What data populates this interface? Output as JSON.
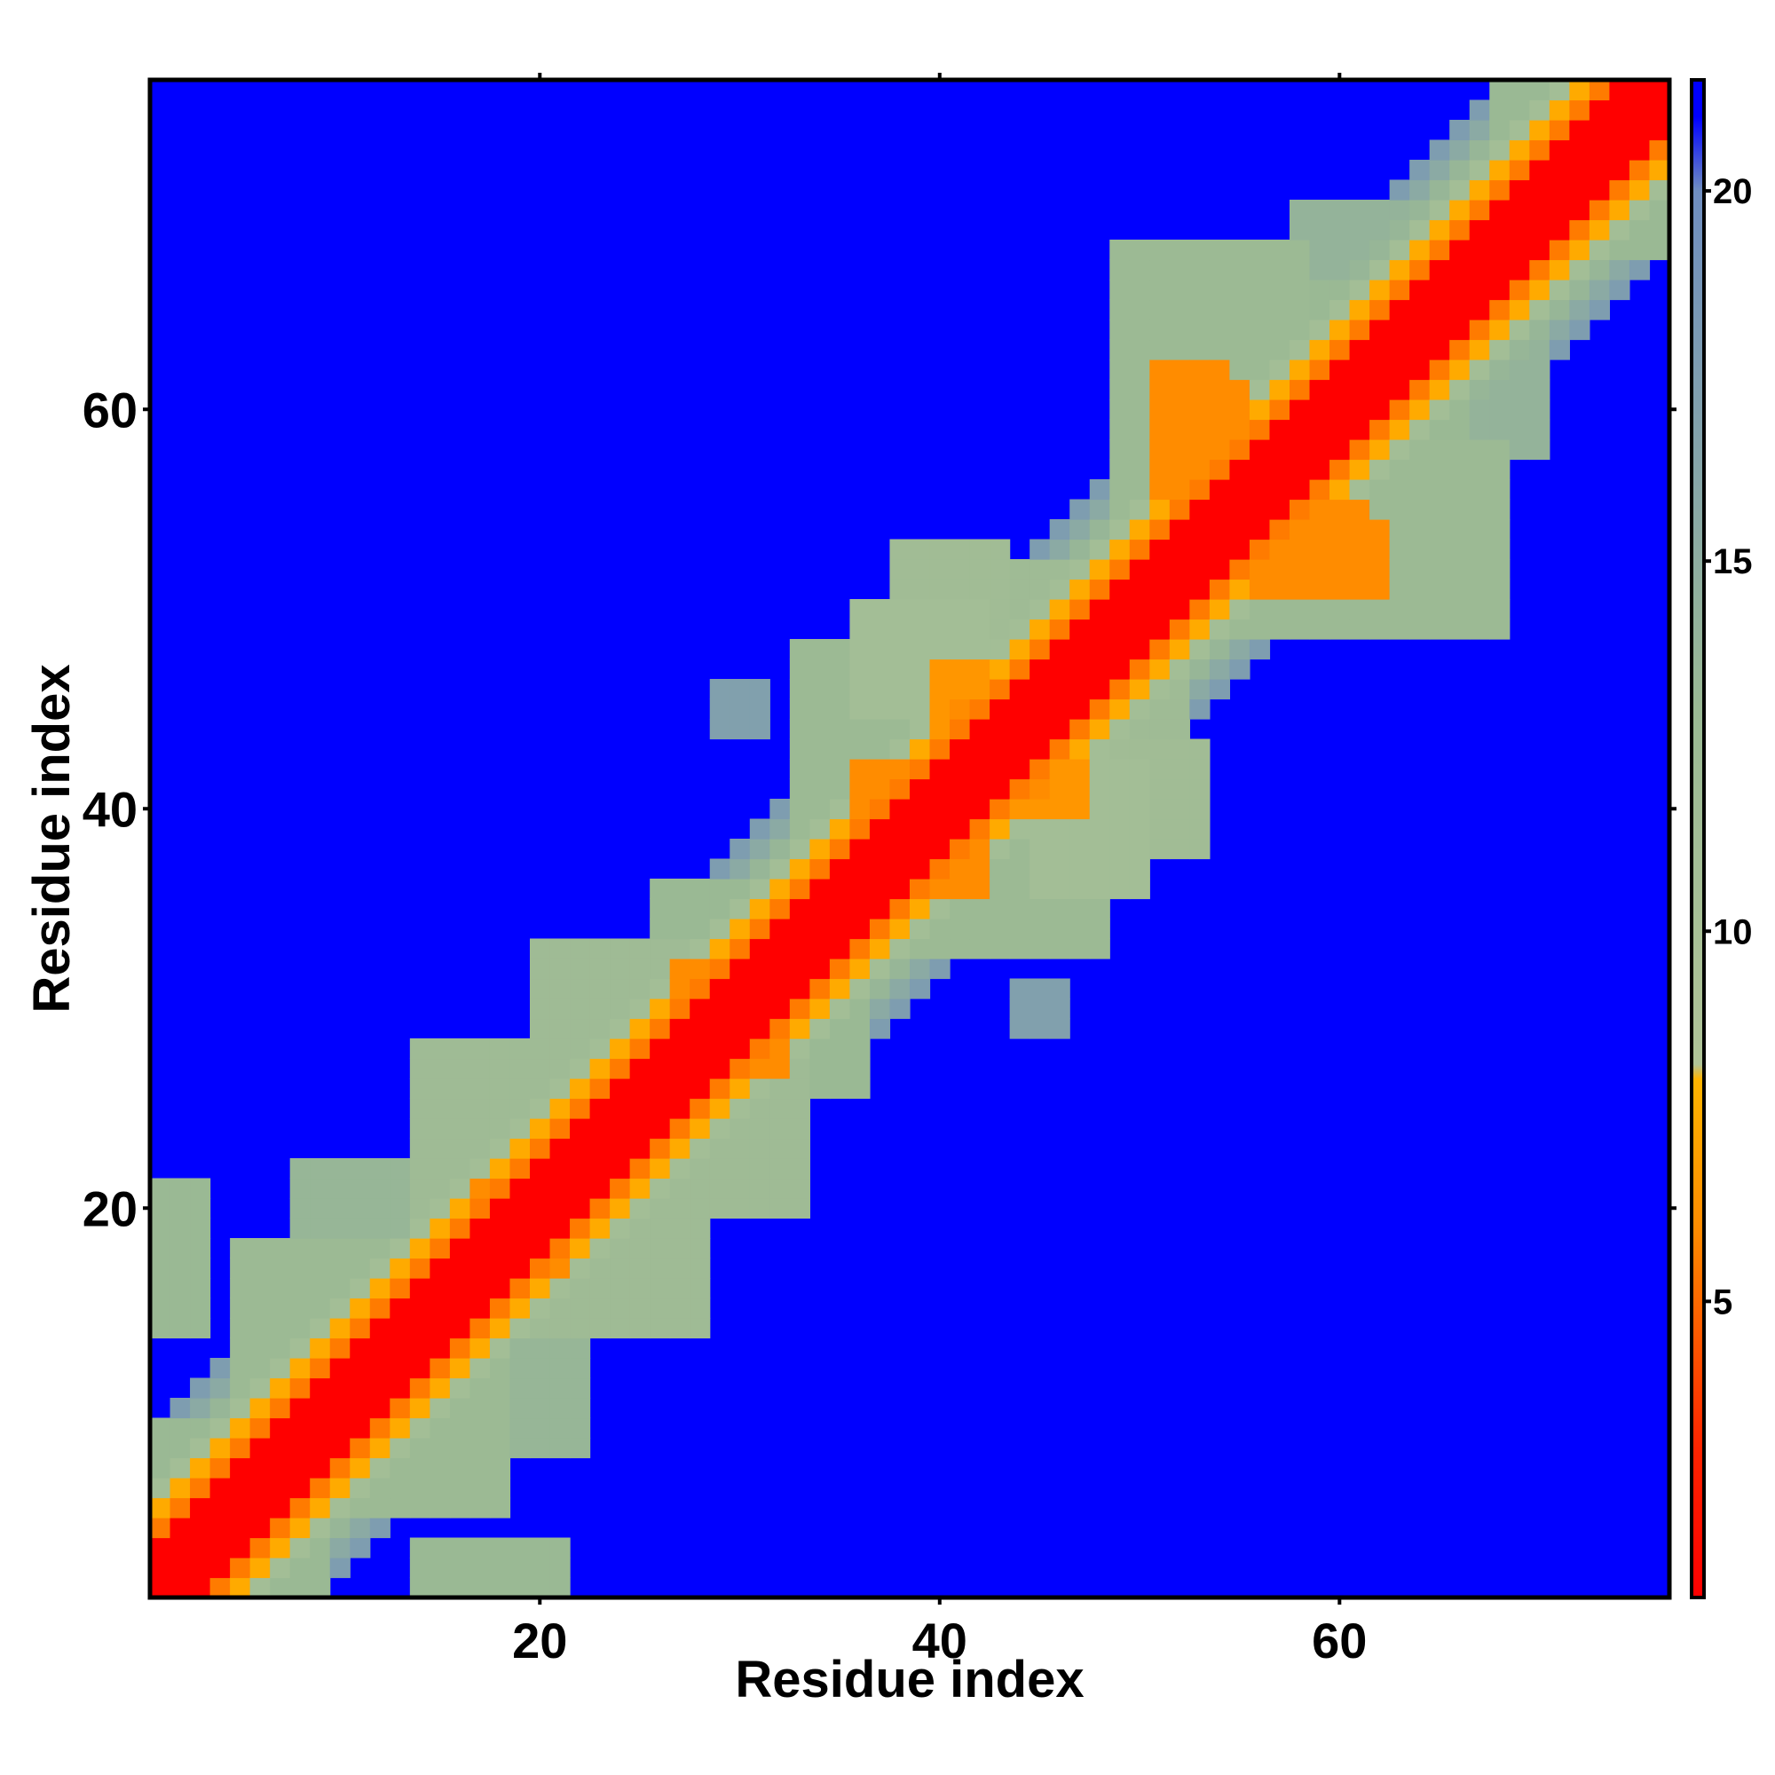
{
  "chart_data": {
    "type": "heatmap",
    "title": "",
    "xlabel": "Residue index",
    "ylabel": "Residue index",
    "xlim": [
      1,
      76
    ],
    "ylim": [
      1,
      76
    ],
    "x_ticks": [
      20,
      40,
      60
    ],
    "y_ticks": [
      20,
      40,
      60
    ],
    "colorbar": {
      "range": [
        1,
        21.5
      ],
      "ticks": [
        5,
        10,
        15,
        20
      ],
      "stops": [
        {
          "value": 1.0,
          "color": "#ff0000"
        },
        {
          "value": 3.0,
          "color": "#ff2400"
        },
        {
          "value": 6.0,
          "color": "#ff8c00"
        },
        {
          "value": 8.0,
          "color": "#ffb400"
        },
        {
          "value": 8.2,
          "color": "#b0c498"
        },
        {
          "value": 13.0,
          "color": "#9ab994"
        },
        {
          "value": 20.0,
          "color": "#6f8ec0"
        },
        {
          "value": 21.0,
          "color": "#0000ff"
        }
      ]
    },
    "background_value": 21.5,
    "description_of_structure": "symmetric residue-residue distance map",
    "band_values_by_offset": [
      1.0,
      1.0,
      1.0,
      5.5,
      7.5,
      11.0,
      13.5,
      15.5,
      17.5
    ],
    "patches": [
      {
        "i": [
          1,
          6
        ],
        "j": [
          6,
          9
        ],
        "value": 13
      },
      {
        "i": [
          5,
          15
        ],
        "j": [
          9,
          18
        ],
        "value": 12.5
      },
      {
        "i": [
          8,
          20
        ],
        "j": [
          14,
          22
        ],
        "value": 13.5
      },
      {
        "i": [
          14,
          24
        ],
        "j": [
          19,
          28
        ],
        "value": 12
      },
      {
        "i": [
          17,
          19
        ],
        "j": [
          20,
          21
        ],
        "value": 6
      },
      {
        "i": [
          19,
          21
        ],
        "j": [
          17,
          19
        ],
        "value": 6.5
      },
      {
        "i": [
          20,
          31
        ],
        "j": [
          26,
          33
        ],
        "value": 12
      },
      {
        "i": [
          26,
          34
        ],
        "j": [
          30,
          36
        ],
        "value": 13
      },
      {
        "i": [
          27,
          28
        ],
        "j": [
          31,
          32
        ],
        "value": 6
      },
      {
        "i": [
          30,
          31
        ],
        "j": [
          27,
          28
        ],
        "value": 6.5
      },
      {
        "i": [
          33,
          41
        ],
        "j": [
          38,
          48
        ],
        "value": 12.5
      },
      {
        "i": [
          36,
          39
        ],
        "j": [
          39,
          42
        ],
        "value": 6
      },
      {
        "i": [
          39,
          41
        ],
        "j": [
          36,
          38
        ],
        "value": 6.5
      },
      {
        "i": [
          40,
          47
        ],
        "j": [
          44,
          52
        ],
        "value": 12
      },
      {
        "i": [
          41,
          43
        ],
        "j": [
          42,
          45
        ],
        "value": 6
      },
      {
        "i": [
          44,
          47
        ],
        "j": [
          40,
          42
        ],
        "value": 6.5
      },
      {
        "i": [
          45,
          50
        ],
        "j": [
          36,
          42
        ],
        "value": 11
      },
      {
        "i": [
          38,
          43
        ],
        "j": [
          46,
          53
        ],
        "value": 11.5
      },
      {
        "i": [
          49,
          58
        ],
        "j": [
          51,
          68
        ],
        "value": 12.5
      },
      {
        "i": [
          51,
          54
        ],
        "j": [
          59,
          62
        ],
        "value": 6
      },
      {
        "i": [
          53,
          55
        ],
        "j": [
          57,
          60
        ],
        "value": 6.5
      },
      {
        "i": [
          56,
          61
        ],
        "j": [
          51,
          55
        ],
        "value": 6
      },
      {
        "i": [
          57,
          66
        ],
        "j": [
          51,
          60
        ],
        "value": 13
      },
      {
        "i": [
          58,
          66
        ],
        "j": [
          62,
          70
        ],
        "value": 14
      },
      {
        "i": [
          62,
          68
        ],
        "j": [
          58,
          64
        ],
        "value": 15
      },
      {
        "i": [
          68,
          73
        ],
        "j": [
          72,
          76
        ],
        "value": 13
      },
      {
        "i": [
          72,
          76
        ],
        "j": [
          68,
          71
        ],
        "value": 14
      },
      {
        "i": [
          14,
          21
        ],
        "j": [
          1,
          3
        ],
        "value": 13
      },
      {
        "i": [
          1,
          2
        ],
        "j": [
          14,
          21
        ],
        "value": 13
      },
      {
        "i": [
          29,
          31
        ],
        "j": [
          44,
          46
        ],
        "value": 17
      },
      {
        "i": [
          44,
          46
        ],
        "j": [
          29,
          31
        ],
        "value": 17
      }
    ]
  }
}
